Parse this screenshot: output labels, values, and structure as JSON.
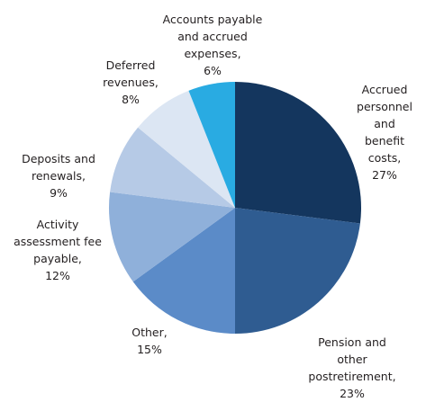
{
  "chart_data": {
    "type": "pie",
    "categories": [
      "Accrued\npersonnel and\nbenefit costs,",
      "Pension and other\npostretirement,",
      "Other,",
      "Activity\nassessment fee\npayable,",
      "Deposits and\nrenewals,",
      "Deferred\nrevenues,",
      "Accounts payable\nand accrued\nexpenses,"
    ],
    "values": [
      27,
      23,
      15,
      12,
      9,
      8,
      6
    ],
    "value_labels": [
      "27%",
      "23%",
      "15%",
      "12%",
      "9%",
      "8%",
      "6%"
    ],
    "colors": [
      "#14365e",
      "#2f5c91",
      "#5b8bc8",
      "#8fb0da",
      "#b6cae6",
      "#dce6f3",
      "#29abe2"
    ]
  }
}
